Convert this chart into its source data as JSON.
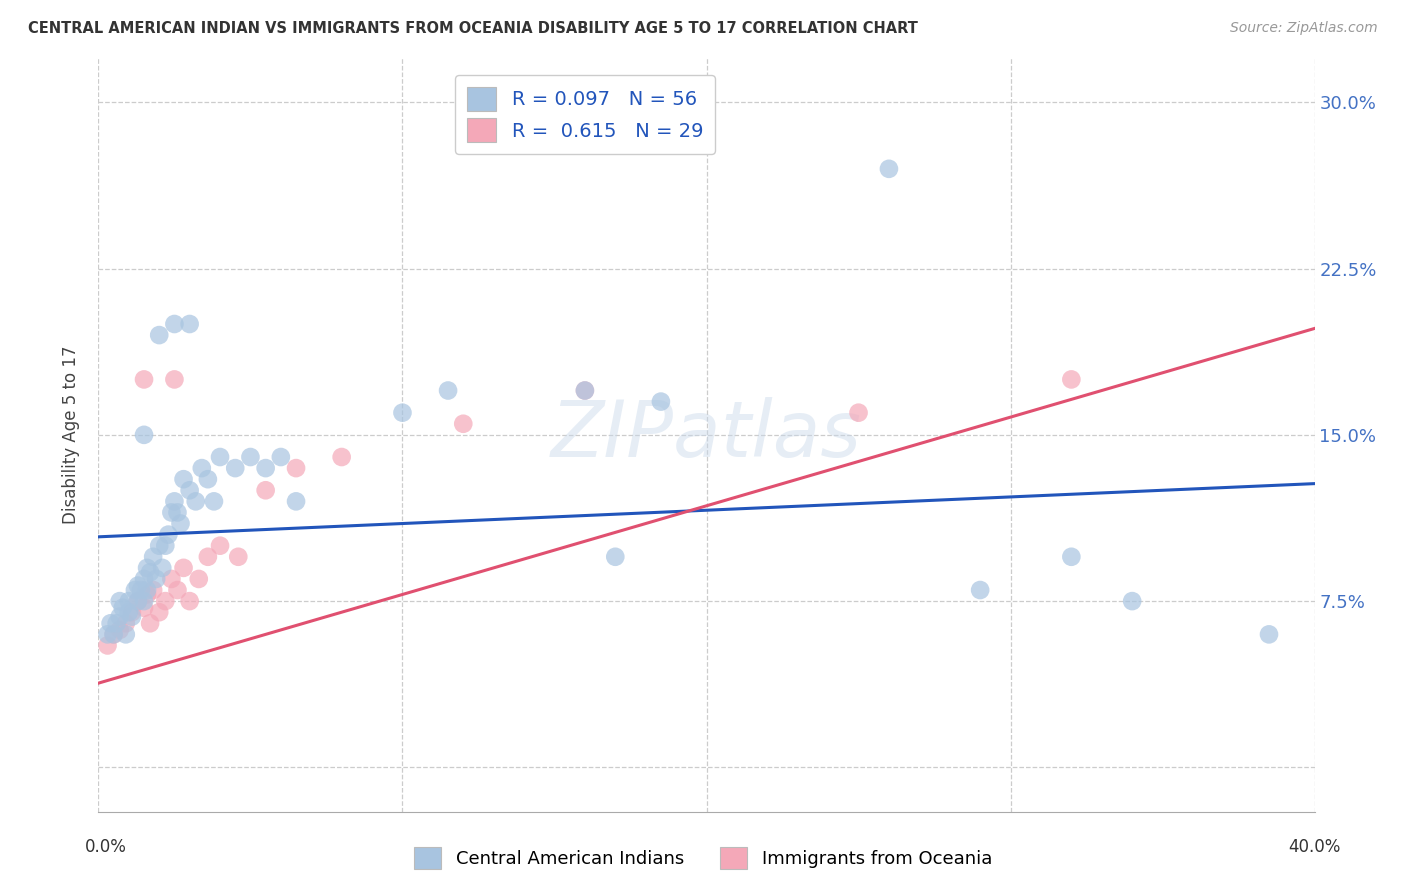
{
  "title": "CENTRAL AMERICAN INDIAN VS IMMIGRANTS FROM OCEANIA DISABILITY AGE 5 TO 17 CORRELATION CHART",
  "source": "Source: ZipAtlas.com",
  "ylabel": "Disability Age 5 to 17",
  "ytick_values": [
    0.0,
    0.075,
    0.15,
    0.225,
    0.3
  ],
  "ytick_labels": [
    "",
    "7.5%",
    "15.0%",
    "22.5%",
    "30.0%"
  ],
  "xlim": [
    0.0,
    0.4
  ],
  "ylim": [
    -0.02,
    0.32
  ],
  "legend1_R": "0.097",
  "legend1_N": "56",
  "legend2_R": "0.615",
  "legend2_N": "29",
  "blue_color": "#a8c4e0",
  "pink_color": "#f4a8b8",
  "blue_line_color": "#2255bb",
  "pink_line_color": "#e05070",
  "blue_scatter_x": [
    0.003,
    0.004,
    0.005,
    0.006,
    0.007,
    0.007,
    0.008,
    0.009,
    0.01,
    0.01,
    0.011,
    0.012,
    0.013,
    0.013,
    0.014,
    0.015,
    0.015,
    0.016,
    0.016,
    0.017,
    0.018,
    0.019,
    0.02,
    0.021,
    0.022,
    0.023,
    0.024,
    0.025,
    0.026,
    0.027,
    0.028,
    0.03,
    0.032,
    0.034,
    0.036,
    0.038,
    0.04,
    0.045,
    0.05,
    0.055,
    0.06,
    0.065,
    0.1,
    0.115,
    0.16,
    0.17,
    0.185,
    0.26,
    0.29,
    0.32,
    0.34,
    0.385,
    0.025,
    0.03,
    0.02,
    0.015
  ],
  "blue_scatter_y": [
    0.06,
    0.065,
    0.06,
    0.065,
    0.068,
    0.075,
    0.072,
    0.06,
    0.07,
    0.075,
    0.068,
    0.08,
    0.075,
    0.082,
    0.08,
    0.085,
    0.075,
    0.09,
    0.08,
    0.088,
    0.095,
    0.085,
    0.1,
    0.09,
    0.1,
    0.105,
    0.115,
    0.12,
    0.115,
    0.11,
    0.13,
    0.125,
    0.12,
    0.135,
    0.13,
    0.12,
    0.14,
    0.135,
    0.14,
    0.135,
    0.14,
    0.12,
    0.16,
    0.17,
    0.17,
    0.095,
    0.165,
    0.27,
    0.08,
    0.095,
    0.075,
    0.06,
    0.2,
    0.2,
    0.195,
    0.15
  ],
  "pink_scatter_x": [
    0.003,
    0.005,
    0.007,
    0.009,
    0.011,
    0.013,
    0.015,
    0.016,
    0.017,
    0.018,
    0.02,
    0.022,
    0.024,
    0.026,
    0.028,
    0.03,
    0.033,
    0.036,
    0.04,
    0.046,
    0.055,
    0.065,
    0.08,
    0.12,
    0.16,
    0.25,
    0.32,
    0.015,
    0.025
  ],
  "pink_scatter_y": [
    0.055,
    0.06,
    0.062,
    0.065,
    0.07,
    0.075,
    0.072,
    0.078,
    0.065,
    0.08,
    0.07,
    0.075,
    0.085,
    0.08,
    0.09,
    0.075,
    0.085,
    0.095,
    0.1,
    0.095,
    0.125,
    0.135,
    0.14,
    0.155,
    0.17,
    0.16,
    0.175,
    0.175,
    0.175
  ],
  "blue_trend_x": [
    0.0,
    0.4
  ],
  "blue_trend_y": [
    0.104,
    0.128
  ],
  "pink_trend_x": [
    0.0,
    0.4
  ],
  "pink_trend_y": [
    0.038,
    0.198
  ],
  "watermark": "ZIPatlas",
  "legend_blue": "#a8c4e0",
  "legend_pink": "#f4a8b8"
}
